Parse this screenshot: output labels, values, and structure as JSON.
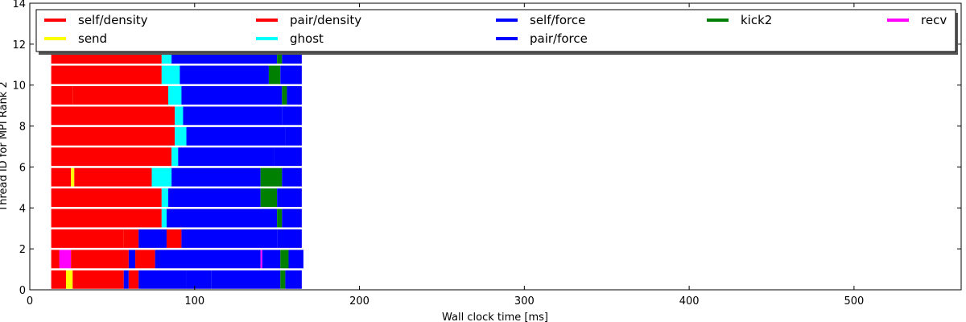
{
  "chart_data": {
    "type": "bar",
    "orientation": "horizontal-task-timeline",
    "title": "",
    "xlabel": "Wall clock time [ms]",
    "ylabel": "Thread ID for MPI Rank 2",
    "xlim": [
      0,
      565
    ],
    "ylim": [
      0,
      14
    ],
    "xticks": [
      0,
      100,
      200,
      300,
      400,
      500
    ],
    "yticks": [
      0,
      2,
      4,
      6,
      8,
      10,
      12,
      14
    ],
    "grid": false,
    "legend_position": "top",
    "legend": [
      {
        "name": "self/density",
        "color": "#ff0000"
      },
      {
        "name": "pair/density",
        "color": "#ff0000"
      },
      {
        "name": "self/force",
        "color": "#0000ff"
      },
      {
        "name": "kick2",
        "color": "#008000"
      },
      {
        "name": "recv",
        "color": "#ff00ff"
      },
      {
        "name": "send",
        "color": "#ffff00"
      },
      {
        "name": "ghost",
        "color": "#00ffff"
      },
      {
        "name": "pair/force",
        "color": "#0000ff"
      }
    ],
    "series": [
      {
        "thread": 0,
        "segments": [
          {
            "start": 13,
            "end": 22,
            "task": "self/density"
          },
          {
            "start": 22,
            "end": 26,
            "task": "send"
          },
          {
            "start": 26,
            "end": 57,
            "task": "pair/density"
          },
          {
            "start": 57,
            "end": 60,
            "task": "self/force"
          },
          {
            "start": 60,
            "end": 66,
            "task": "pair/density"
          },
          {
            "start": 66,
            "end": 95,
            "task": "self/force"
          },
          {
            "start": 95,
            "end": 110,
            "task": "pair/force"
          },
          {
            "start": 110,
            "end": 152,
            "task": "self/force"
          },
          {
            "start": 152,
            "end": 155,
            "task": "kick2"
          },
          {
            "start": 155,
            "end": 165,
            "task": "pair/force"
          }
        ]
      },
      {
        "thread": 1,
        "segments": [
          {
            "start": 13,
            "end": 18,
            "task": "pair/density"
          },
          {
            "start": 18,
            "end": 25,
            "task": "recv"
          },
          {
            "start": 25,
            "end": 60,
            "task": "pair/density"
          },
          {
            "start": 60,
            "end": 64,
            "task": "self/force"
          },
          {
            "start": 64,
            "end": 76,
            "task": "pair/density"
          },
          {
            "start": 76,
            "end": 140,
            "task": "self/force"
          },
          {
            "start": 140,
            "end": 141,
            "task": "recv"
          },
          {
            "start": 141,
            "end": 152,
            "task": "pair/force"
          },
          {
            "start": 152,
            "end": 157,
            "task": "kick2"
          },
          {
            "start": 157,
            "end": 166,
            "task": "pair/force"
          }
        ]
      },
      {
        "thread": 2,
        "segments": [
          {
            "start": 13,
            "end": 57,
            "task": "self/density"
          },
          {
            "start": 57,
            "end": 66,
            "task": "pair/density"
          },
          {
            "start": 66,
            "end": 83,
            "task": "self/force"
          },
          {
            "start": 83,
            "end": 92,
            "task": "pair/density"
          },
          {
            "start": 92,
            "end": 150,
            "task": "self/force"
          },
          {
            "start": 150,
            "end": 165,
            "task": "pair/force"
          }
        ]
      },
      {
        "thread": 3,
        "segments": [
          {
            "start": 13,
            "end": 80,
            "task": "pair/density"
          },
          {
            "start": 80,
            "end": 83,
            "task": "ghost"
          },
          {
            "start": 83,
            "end": 150,
            "task": "self/force"
          },
          {
            "start": 150,
            "end": 153,
            "task": "kick2"
          },
          {
            "start": 153,
            "end": 165,
            "task": "pair/force"
          }
        ]
      },
      {
        "thread": 4,
        "segments": [
          {
            "start": 13,
            "end": 80,
            "task": "pair/density"
          },
          {
            "start": 80,
            "end": 84,
            "task": "ghost"
          },
          {
            "start": 84,
            "end": 140,
            "task": "self/force"
          },
          {
            "start": 140,
            "end": 150,
            "task": "kick2"
          },
          {
            "start": 150,
            "end": 165,
            "task": "pair/force"
          }
        ]
      },
      {
        "thread": 5,
        "segments": [
          {
            "start": 13,
            "end": 25,
            "task": "pair/density"
          },
          {
            "start": 25,
            "end": 27,
            "task": "send"
          },
          {
            "start": 27,
            "end": 74,
            "task": "pair/density"
          },
          {
            "start": 74,
            "end": 86,
            "task": "ghost"
          },
          {
            "start": 86,
            "end": 140,
            "task": "self/force"
          },
          {
            "start": 140,
            "end": 153,
            "task": "kick2"
          },
          {
            "start": 153,
            "end": 165,
            "task": "pair/force"
          }
        ]
      },
      {
        "thread": 6,
        "segments": [
          {
            "start": 13,
            "end": 86,
            "task": "pair/density"
          },
          {
            "start": 86,
            "end": 90,
            "task": "ghost"
          },
          {
            "start": 90,
            "end": 148,
            "task": "self/force"
          },
          {
            "start": 148,
            "end": 165,
            "task": "pair/force"
          }
        ]
      },
      {
        "thread": 7,
        "segments": [
          {
            "start": 13,
            "end": 88,
            "task": "pair/density"
          },
          {
            "start": 88,
            "end": 95,
            "task": "ghost"
          },
          {
            "start": 95,
            "end": 155,
            "task": "self/force"
          },
          {
            "start": 155,
            "end": 165,
            "task": "pair/force"
          }
        ]
      },
      {
        "thread": 8,
        "segments": [
          {
            "start": 13,
            "end": 88,
            "task": "pair/density"
          },
          {
            "start": 88,
            "end": 93,
            "task": "ghost"
          },
          {
            "start": 93,
            "end": 153,
            "task": "self/force"
          },
          {
            "start": 153,
            "end": 165,
            "task": "pair/force"
          }
        ]
      },
      {
        "thread": 9,
        "segments": [
          {
            "start": 13,
            "end": 26,
            "task": "pair/density"
          },
          {
            "start": 26,
            "end": 84,
            "task": "pair/density"
          },
          {
            "start": 84,
            "end": 92,
            "task": "ghost"
          },
          {
            "start": 92,
            "end": 153,
            "task": "self/force"
          },
          {
            "start": 153,
            "end": 156,
            "task": "kick2"
          },
          {
            "start": 156,
            "end": 165,
            "task": "pair/force"
          }
        ]
      },
      {
        "thread": 10,
        "segments": [
          {
            "start": 13,
            "end": 80,
            "task": "pair/density"
          },
          {
            "start": 80,
            "end": 91,
            "task": "ghost"
          },
          {
            "start": 91,
            "end": 145,
            "task": "self/force"
          },
          {
            "start": 145,
            "end": 152,
            "task": "kick2"
          },
          {
            "start": 152,
            "end": 165,
            "task": "pair/force"
          }
        ]
      },
      {
        "thread": 11,
        "segments": [
          {
            "start": 13,
            "end": 80,
            "task": "pair/density"
          },
          {
            "start": 80,
            "end": 86,
            "task": "ghost"
          },
          {
            "start": 86,
            "end": 150,
            "task": "self/force"
          },
          {
            "start": 150,
            "end": 153,
            "task": "kick2"
          },
          {
            "start": 153,
            "end": 165,
            "task": "pair/force"
          }
        ]
      }
    ]
  }
}
